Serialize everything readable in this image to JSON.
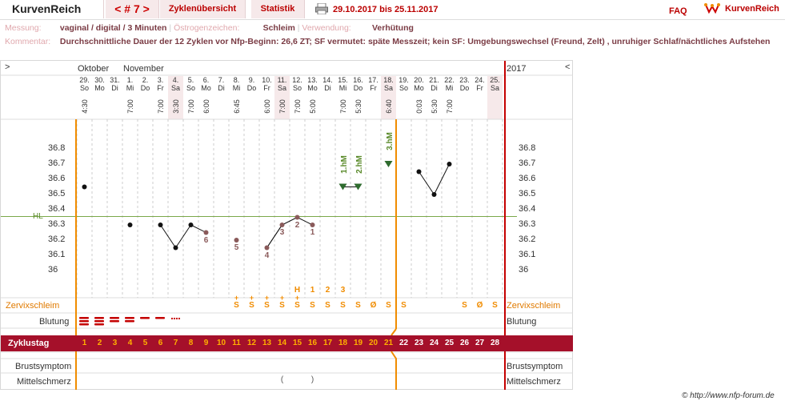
{
  "header": {
    "brand": "KurvenReich",
    "cycle_nav": "< # 7 >",
    "btn_cycles": "Zyklenübersicht",
    "btn_stats": "Statistik",
    "date_range": "29.10.2017 bis 25.11.2017",
    "faq": "FAQ",
    "logo_text": "KurvenReich"
  },
  "info": {
    "messung_label": "Messung:",
    "messung_value": "vaginal / digital / 3 Minuten",
    "oestrogen_label": "Östrogenzeichen:",
    "oestrogen_value": "Schleim",
    "verwendung_label": "Verwendung:",
    "verwendung_value": "Verhütung",
    "kommentar_label": "Kommentar:",
    "kommentar_value": "Durchschnittliche Dauer der 12 Zyklen vor Nfp-Beginn: 26,6 ZT;   SF vermutet: späte Messzeit; kein SF: Umgebungswechsel (Freund, Zelt) , unruhiger Schlaf/nächtliches Aufstehen"
  },
  "chart": {
    "toggle_left": ">",
    "toggle_right": "<",
    "month_1": "Oktober",
    "month_2": "November",
    "year": "2017",
    "hl_label": "HL",
    "days": [
      {
        "d": "29.",
        "w": "So",
        "t": "4:30"
      },
      {
        "d": "30.",
        "w": "Mo",
        "t": ""
      },
      {
        "d": "31.",
        "w": "Di",
        "t": ""
      },
      {
        "d": "1.",
        "w": "Mi",
        "t": "7:00"
      },
      {
        "d": "2.",
        "w": "Do",
        "t": ""
      },
      {
        "d": "3.",
        "w": "Fr",
        "t": "7:00"
      },
      {
        "d": "4.",
        "w": "Sa",
        "t": "3:30"
      },
      {
        "d": "5.",
        "w": "So",
        "t": "7:00"
      },
      {
        "d": "6.",
        "w": "Mo",
        "t": "6:00"
      },
      {
        "d": "7.",
        "w": "Di",
        "t": ""
      },
      {
        "d": "8.",
        "w": "Mi",
        "t": "6:45"
      },
      {
        "d": "9.",
        "w": "Do",
        "t": ""
      },
      {
        "d": "10.",
        "w": "Fr",
        "t": "6:00"
      },
      {
        "d": "11.",
        "w": "Sa",
        "t": "7:00"
      },
      {
        "d": "12.",
        "w": "So",
        "t": "7:00"
      },
      {
        "d": "13.",
        "w": "Mo",
        "t": "5:00"
      },
      {
        "d": "14.",
        "w": "Di",
        "t": ""
      },
      {
        "d": "15.",
        "w": "Mi",
        "t": "7:00"
      },
      {
        "d": "16.",
        "w": "Do",
        "t": "5:30"
      },
      {
        "d": "17.",
        "w": "Fr",
        "t": ""
      },
      {
        "d": "18.",
        "w": "Sa",
        "t": "6:40"
      },
      {
        "d": "19.",
        "w": "So",
        "t": ""
      },
      {
        "d": "20.",
        "w": "Mo",
        "t": "0:03"
      },
      {
        "d": "21.",
        "w": "Di",
        "t": "5:30"
      },
      {
        "d": "22.",
        "w": "Mi",
        "t": "7:00"
      },
      {
        "d": "23.",
        "w": "Do",
        "t": ""
      },
      {
        "d": "24.",
        "w": "Fr",
        "t": ""
      },
      {
        "d": "25.",
        "w": "Sa",
        "t": ""
      }
    ],
    "temp_axis": [
      "36.8",
      "36.7",
      "36.6",
      "36.5",
      "36.4",
      "36.3",
      "36.2",
      "36.1",
      "36"
    ],
    "temps": [
      36.55,
      null,
      null,
      36.3,
      null,
      36.3,
      36.15,
      36.3,
      36.25,
      null,
      36.2,
      null,
      36.15,
      36.3,
      36.35,
      36.3,
      null,
      36.55,
      36.55,
      null,
      36.7,
      null,
      36.65,
      36.5,
      36.7,
      null,
      null,
      null
    ],
    "excluded": [
      false,
      false,
      false,
      false,
      false,
      false,
      false,
      false,
      true,
      false,
      true,
      false,
      true,
      true,
      true,
      true,
      false,
      false,
      false,
      false,
      false,
      false,
      false,
      false,
      false,
      false,
      false,
      false
    ],
    "count_labels": [
      {
        "i": 8,
        "t": "6"
      },
      {
        "i": 10,
        "t": "5"
      },
      {
        "i": 12,
        "t": "4"
      },
      {
        "i": 13,
        "t": "3"
      },
      {
        "i": 14,
        "t": "2"
      },
      {
        "i": 15,
        "t": "1"
      }
    ],
    "hm_labels": [
      {
        "i": 17,
        "t": "1.hM"
      },
      {
        "i": 18,
        "t": "2.hM"
      },
      {
        "i": 20,
        "t": "3.hM"
      }
    ],
    "peak_labels": [
      {
        "i": 14,
        "t": "H"
      },
      {
        "i": 15,
        "t": "1"
      },
      {
        "i": 16,
        "t": "2"
      },
      {
        "i": 17,
        "t": "3"
      }
    ],
    "rows": {
      "zervix": "Zervixschleim",
      "blutung": "Blutung",
      "zyklustag": "Zyklustag",
      "brust": "Brustsymptom",
      "mittel": "Mittelschmerz"
    },
    "zervix_marks": [
      "",
      "",
      "",
      "",
      "",
      "",
      "",
      "",
      "",
      "",
      "S",
      "S",
      "S",
      "S",
      "S",
      "S",
      "S",
      "S",
      "S",
      "Ø",
      "S",
      "S",
      "",
      "",
      "",
      "S",
      "Ø",
      "S"
    ],
    "zervix_plus": [
      false,
      false,
      false,
      false,
      false,
      false,
      false,
      false,
      false,
      false,
      true,
      true,
      true,
      true,
      true,
      false,
      false,
      false,
      false,
      false,
      false,
      false,
      false,
      false,
      false,
      false,
      false,
      false
    ],
    "cycle_days": [
      "1",
      "2",
      "3",
      "4",
      "5",
      "6",
      "7",
      "8",
      "9",
      "10",
      "11",
      "12",
      "13",
      "14",
      "15",
      "16",
      "17",
      "18",
      "19",
      "20",
      "21",
      "22",
      "23",
      "24",
      "25",
      "26",
      "27",
      "28"
    ],
    "mittel_marks": [
      {
        "i": 13,
        "t": "("
      },
      {
        "i": 15,
        "t": ")"
      }
    ],
    "colors": {
      "accent": "#a5102a",
      "orange": "#f08c00",
      "green": "#5a8a2a",
      "red": "#c40000",
      "temp_excluded": "#8a5a5a"
    }
  },
  "footer": {
    "copyright": "© http://www.nfp-forum.de"
  }
}
